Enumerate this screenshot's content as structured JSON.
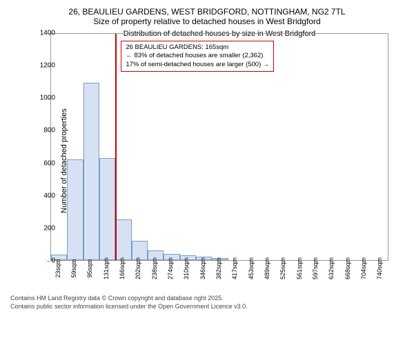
{
  "title": {
    "line1": "26, BEAULIEU GARDENS, WEST BRIDGFORD, NOTTINGHAM, NG2 7TL",
    "line2": "Size of property relative to detached houses in West Bridgford"
  },
  "chart": {
    "type": "histogram",
    "ylabel": "Number of detached properties",
    "xlabel": "Distribution of detached houses by size in West Bridgford",
    "ylim": [
      0,
      1400
    ],
    "ytick_step": 200,
    "yticks": [
      0,
      200,
      400,
      600,
      800,
      1000,
      1200,
      1400
    ],
    "xticks": [
      "23sqm",
      "59sqm",
      "95sqm",
      "131sqm",
      "166sqm",
      "202sqm",
      "238sqm",
      "274sqm",
      "310sqm",
      "346sqm",
      "382sqm",
      "417sqm",
      "453sqm",
      "489sqm",
      "525sqm",
      "561sqm",
      "597sqm",
      "632sqm",
      "668sqm",
      "704sqm",
      "740sqm"
    ],
    "bars": {
      "categories": [
        "23",
        "59",
        "95",
        "131",
        "166",
        "202",
        "238",
        "274",
        "310",
        "346",
        "382",
        "417",
        "453",
        "489",
        "525",
        "561",
        "597",
        "632",
        "668",
        "704",
        "740"
      ],
      "values": [
        35,
        620,
        1090,
        630,
        250,
        120,
        60,
        40,
        30,
        20,
        12,
        0,
        0,
        0,
        0,
        0,
        0,
        0,
        0,
        0,
        0
      ],
      "color": "#d6e2f3",
      "border_color": "#7a9bc4"
    },
    "marker": {
      "position_index": 4,
      "color": "#cc0000"
    },
    "annotation": {
      "line1": "26 BEAULIEU GARDENS: 165sqm",
      "line2": "← 83% of detached houses are smaller (2,362)",
      "line3": "17% of semi-detached houses are larger (500) →",
      "border_color": "#cc0000"
    },
    "background_color": "#ffffff"
  },
  "footer": {
    "line1": "Contains HM Land Registry data © Crown copyright and database right 2025.",
    "line2": "Contains public sector information licensed under the Open Government Licence v3.0."
  }
}
